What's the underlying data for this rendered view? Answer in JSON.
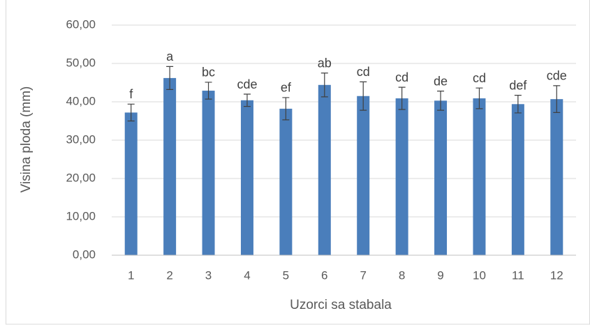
{
  "chart_data": {
    "type": "bar",
    "x_label": "Uzorci sa stabala",
    "y_label": "Visina ploda (mm)",
    "categories": [
      "1",
      "2",
      "3",
      "4",
      "5",
      "6",
      "7",
      "8",
      "9",
      "10",
      "11",
      "12"
    ],
    "values": [
      37.2,
      46.2,
      42.9,
      40.4,
      38.2,
      44.4,
      41.5,
      40.9,
      40.3,
      40.9,
      39.4,
      40.7
    ],
    "errors": [
      2.2,
      3.0,
      2.2,
      1.6,
      2.9,
      3.1,
      3.7,
      2.9,
      2.5,
      2.7,
      2.3,
      3.5
    ],
    "annotations": [
      "f",
      "a",
      "bc",
      "cde",
      "ef",
      "ab",
      "cd",
      "cd",
      "de",
      "cd",
      "def",
      "cde"
    ],
    "color": "#4a7ebb",
    "ylim": [
      0,
      60
    ],
    "yticks": [
      {
        "value": 0,
        "label": "0,00"
      },
      {
        "value": 10,
        "label": "10,00"
      },
      {
        "value": 20,
        "label": "20,00"
      },
      {
        "value": 30,
        "label": "30,00"
      },
      {
        "value": 40,
        "label": "40,00"
      },
      {
        "value": 50,
        "label": "50,00"
      },
      {
        "value": 60,
        "label": "60,00"
      }
    ],
    "grid": true
  }
}
